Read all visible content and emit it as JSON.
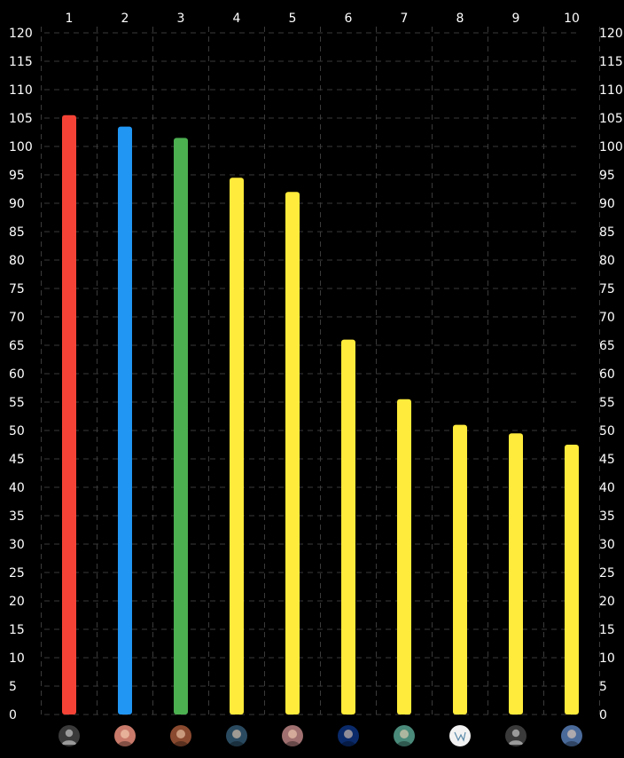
{
  "chart_data": {
    "type": "bar",
    "categories": [
      "1",
      "2",
      "3",
      "4",
      "5",
      "6",
      "7",
      "8",
      "9",
      "10"
    ],
    "values": [
      105.5,
      103.5,
      101.5,
      94.5,
      92,
      66,
      55.5,
      51,
      49.5,
      47.5
    ],
    "bar_colors": [
      "#f44336",
      "#2196f3",
      "#4caf50",
      "#ffeb3b",
      "#ffeb3b",
      "#ffeb3b",
      "#ffeb3b",
      "#ffeb3b",
      "#ffeb3b",
      "#ffeb3b"
    ],
    "ylim": [
      0,
      120
    ],
    "y_ticks": [
      0,
      5,
      10,
      15,
      20,
      25,
      30,
      35,
      40,
      45,
      50,
      55,
      60,
      65,
      70,
      75,
      80,
      85,
      90,
      95,
      100,
      105,
      110,
      115,
      120
    ],
    "y_axis_sides": "both",
    "x_axis_position": "top",
    "grid": true,
    "grid_style": "dashed",
    "background": "#000000",
    "avatars": [
      {
        "name": "default-user-icon",
        "bg": "#3a3a3a"
      },
      {
        "name": "face-avatar-1",
        "bg": "#c97a6a"
      },
      {
        "name": "face-avatar-2",
        "bg": "#8a4a30"
      },
      {
        "name": "face-avatar-3",
        "bg": "#2a4a60"
      },
      {
        "name": "face-avatar-4",
        "bg": "#a07070"
      },
      {
        "name": "blue-pattern-avatar",
        "bg": "#0a2a6a"
      },
      {
        "name": "colorful-art-avatar",
        "bg": "#4a8a7a"
      },
      {
        "name": "white-sketch-avatar",
        "bg": "#f2f2f2"
      },
      {
        "name": "default-user-icon",
        "bg": "#3a3a3a"
      },
      {
        "name": "landscape-avatar",
        "bg": "#4a6a9a"
      }
    ]
  }
}
